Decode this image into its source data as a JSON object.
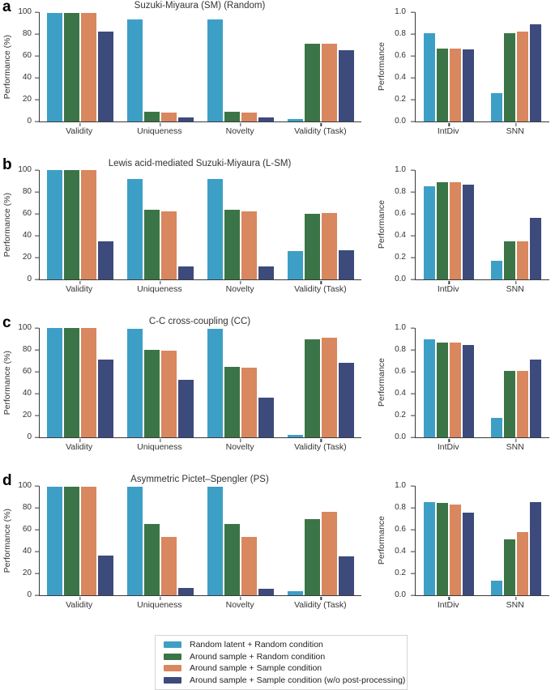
{
  "palette": [
    "#3d9fc6",
    "#3b7547",
    "#d8875e",
    "#3d4a7c"
  ],
  "figure": {
    "panel_letters": [
      "a",
      "b",
      "c",
      "d"
    ]
  },
  "legend": {
    "items": [
      {
        "label": "Random latent + Random condition",
        "color": "#3d9fc6"
      },
      {
        "label": "Around sample + Random condition",
        "color": "#3b7547"
      },
      {
        "label": "Around sample + Sample condition",
        "color": "#d8875e"
      },
      {
        "label": "Around sample + Sample condition (w/o post-processing)",
        "color": "#3d4a7c"
      }
    ]
  },
  "chart_data": [
    {
      "panel": "a",
      "side": "left",
      "type": "bar",
      "title": "Suzuki-Miyaura (SM) (Random)",
      "ylabel": "Performance (%)",
      "ylim": [
        0,
        100
      ],
      "ytick_labels": [
        "0",
        "20",
        "40",
        "60",
        "80",
        "100"
      ],
      "categories": [
        "Validity",
        "Uniqueness",
        "Novelty",
        "Validity (Task)"
      ],
      "series": [
        {
          "name": "Random latent + Random condition",
          "values": [
            99.5,
            93,
            93,
            2
          ]
        },
        {
          "name": "Around sample + Random condition",
          "values": [
            99.5,
            9,
            9,
            71
          ]
        },
        {
          "name": "Around sample + Sample condition",
          "values": [
            99.5,
            8.5,
            8.5,
            71
          ]
        },
        {
          "name": "Around sample + Sample condition (w/o post-processing)",
          "values": [
            82,
            3.5,
            3.5,
            65
          ]
        }
      ]
    },
    {
      "panel": "a",
      "side": "right",
      "type": "bar",
      "title": "",
      "ylabel": "Performance",
      "ylim": [
        0,
        1
      ],
      "ytick_labels": [
        "0.0",
        "0.2",
        "0.4",
        "0.6",
        "0.8",
        "1.0"
      ],
      "categories": [
        "IntDiv",
        "SNN"
      ],
      "series": [
        {
          "name": "Random latent + Random condition",
          "values": [
            0.81,
            0.26
          ]
        },
        {
          "name": "Around sample + Random condition",
          "values": [
            0.67,
            0.81
          ]
        },
        {
          "name": "Around sample + Sample condition",
          "values": [
            0.67,
            0.82
          ]
        },
        {
          "name": "Around sample + Sample condition (w/o post-processing)",
          "values": [
            0.66,
            0.89
          ]
        }
      ]
    },
    {
      "panel": "b",
      "side": "left",
      "type": "bar",
      "title": "Lewis acid-mediated Suzuki-Miyaura (L-SM)",
      "ylabel": "Performance (%)",
      "ylim": [
        0,
        100
      ],
      "ytick_labels": [
        "0",
        "20",
        "40",
        "60",
        "80",
        "100"
      ],
      "categories": [
        "Validity",
        "Uniqueness",
        "Novelty",
        "Validity (Task)"
      ],
      "series": [
        {
          "name": "Random latent + Random condition",
          "values": [
            100,
            92,
            92,
            26
          ]
        },
        {
          "name": "Around sample + Random condition",
          "values": [
            100,
            63.5,
            63.5,
            60
          ]
        },
        {
          "name": "Around sample + Sample condition",
          "values": [
            100,
            62,
            62,
            60.5
          ]
        },
        {
          "name": "Around sample + Sample condition (w/o post-processing)",
          "values": [
            34.5,
            12,
            12,
            27
          ]
        }
      ]
    },
    {
      "panel": "b",
      "side": "right",
      "type": "bar",
      "title": "",
      "ylabel": "Performance",
      "ylim": [
        0,
        1
      ],
      "ytick_labels": [
        "0.0",
        "0.2",
        "0.4",
        "0.6",
        "0.8",
        "1.0"
      ],
      "categories": [
        "IntDiv",
        "SNN"
      ],
      "series": [
        {
          "name": "Random latent + Random condition",
          "values": [
            0.855,
            0.17
          ]
        },
        {
          "name": "Around sample + Random condition",
          "values": [
            0.89,
            0.35
          ]
        },
        {
          "name": "Around sample + Sample condition",
          "values": [
            0.89,
            0.35
          ]
        },
        {
          "name": "Around sample + Sample condition (w/o post-processing)",
          "values": [
            0.865,
            0.56
          ]
        }
      ]
    },
    {
      "panel": "c",
      "side": "left",
      "type": "bar",
      "title": "C-C cross-coupling (CC)",
      "ylabel": "Performance (%)",
      "ylim": [
        0,
        100
      ],
      "ytick_labels": [
        "0",
        "20",
        "40",
        "60",
        "80",
        "100"
      ],
      "categories": [
        "Validity",
        "Uniqueness",
        "Novelty",
        "Validity (Task)"
      ],
      "series": [
        {
          "name": "Random latent + Random condition",
          "values": [
            100,
            99,
            99,
            2.5
          ]
        },
        {
          "name": "Around sample + Random condition",
          "values": [
            100,
            80,
            64.5,
            90
          ]
        },
        {
          "name": "Around sample + Sample condition",
          "values": [
            100,
            79.5,
            64,
            91
          ]
        },
        {
          "name": "Around sample + Sample condition (w/o post-processing)",
          "values": [
            71,
            52.5,
            36,
            68.5
          ]
        }
      ]
    },
    {
      "panel": "c",
      "side": "right",
      "type": "bar",
      "title": "",
      "ylabel": "Performance",
      "ylim": [
        0,
        1
      ],
      "ytick_labels": [
        "0.0",
        "0.2",
        "0.4",
        "0.6",
        "0.8",
        "1.0"
      ],
      "categories": [
        "IntDiv",
        "SNN"
      ],
      "series": [
        {
          "name": "Random latent + Random condition",
          "values": [
            0.9,
            0.18
          ]
        },
        {
          "name": "Around sample + Random condition",
          "values": [
            0.865,
            0.61
          ]
        },
        {
          "name": "Around sample + Sample condition",
          "values": [
            0.865,
            0.61
          ]
        },
        {
          "name": "Around sample + Sample condition (w/o post-processing)",
          "values": [
            0.845,
            0.71
          ]
        }
      ]
    },
    {
      "panel": "d",
      "side": "left",
      "type": "bar",
      "title": "Asymmetric Pictet–Spengler (PS)",
      "ylabel": "Performance (%)",
      "ylim": [
        0,
        100
      ],
      "ytick_labels": [
        "0",
        "20",
        "40",
        "60",
        "80",
        "100"
      ],
      "categories": [
        "Validity",
        "Uniqueness",
        "Novelty",
        "Validity (Task)"
      ],
      "series": [
        {
          "name": "Random latent + Random condition",
          "values": [
            99.5,
            99.5,
            99.5,
            3.5
          ]
        },
        {
          "name": "Around sample + Random condition",
          "values": [
            99.5,
            65,
            65,
            69.5
          ]
        },
        {
          "name": "Around sample + Sample condition",
          "values": [
            99.5,
            53.5,
            53,
            76.5
          ]
        },
        {
          "name": "Around sample + Sample condition (w/o post-processing)",
          "values": [
            36,
            6.5,
            6,
            35.5
          ]
        }
      ]
    },
    {
      "panel": "d",
      "side": "right",
      "type": "bar",
      "title": "",
      "ylabel": "Performance",
      "ylim": [
        0,
        1
      ],
      "ytick_labels": [
        "0.0",
        "0.2",
        "0.4",
        "0.6",
        "0.8",
        "1.0"
      ],
      "categories": [
        "IntDiv",
        "SNN"
      ],
      "series": [
        {
          "name": "Random latent + Random condition",
          "values": [
            0.855,
            0.13
          ]
        },
        {
          "name": "Around sample + Random condition",
          "values": [
            0.845,
            0.51
          ]
        },
        {
          "name": "Around sample + Sample condition",
          "values": [
            0.83,
            0.58
          ]
        },
        {
          "name": "Around sample + Sample condition (w/o post-processing)",
          "values": [
            0.755,
            0.85
          ]
        }
      ]
    }
  ]
}
